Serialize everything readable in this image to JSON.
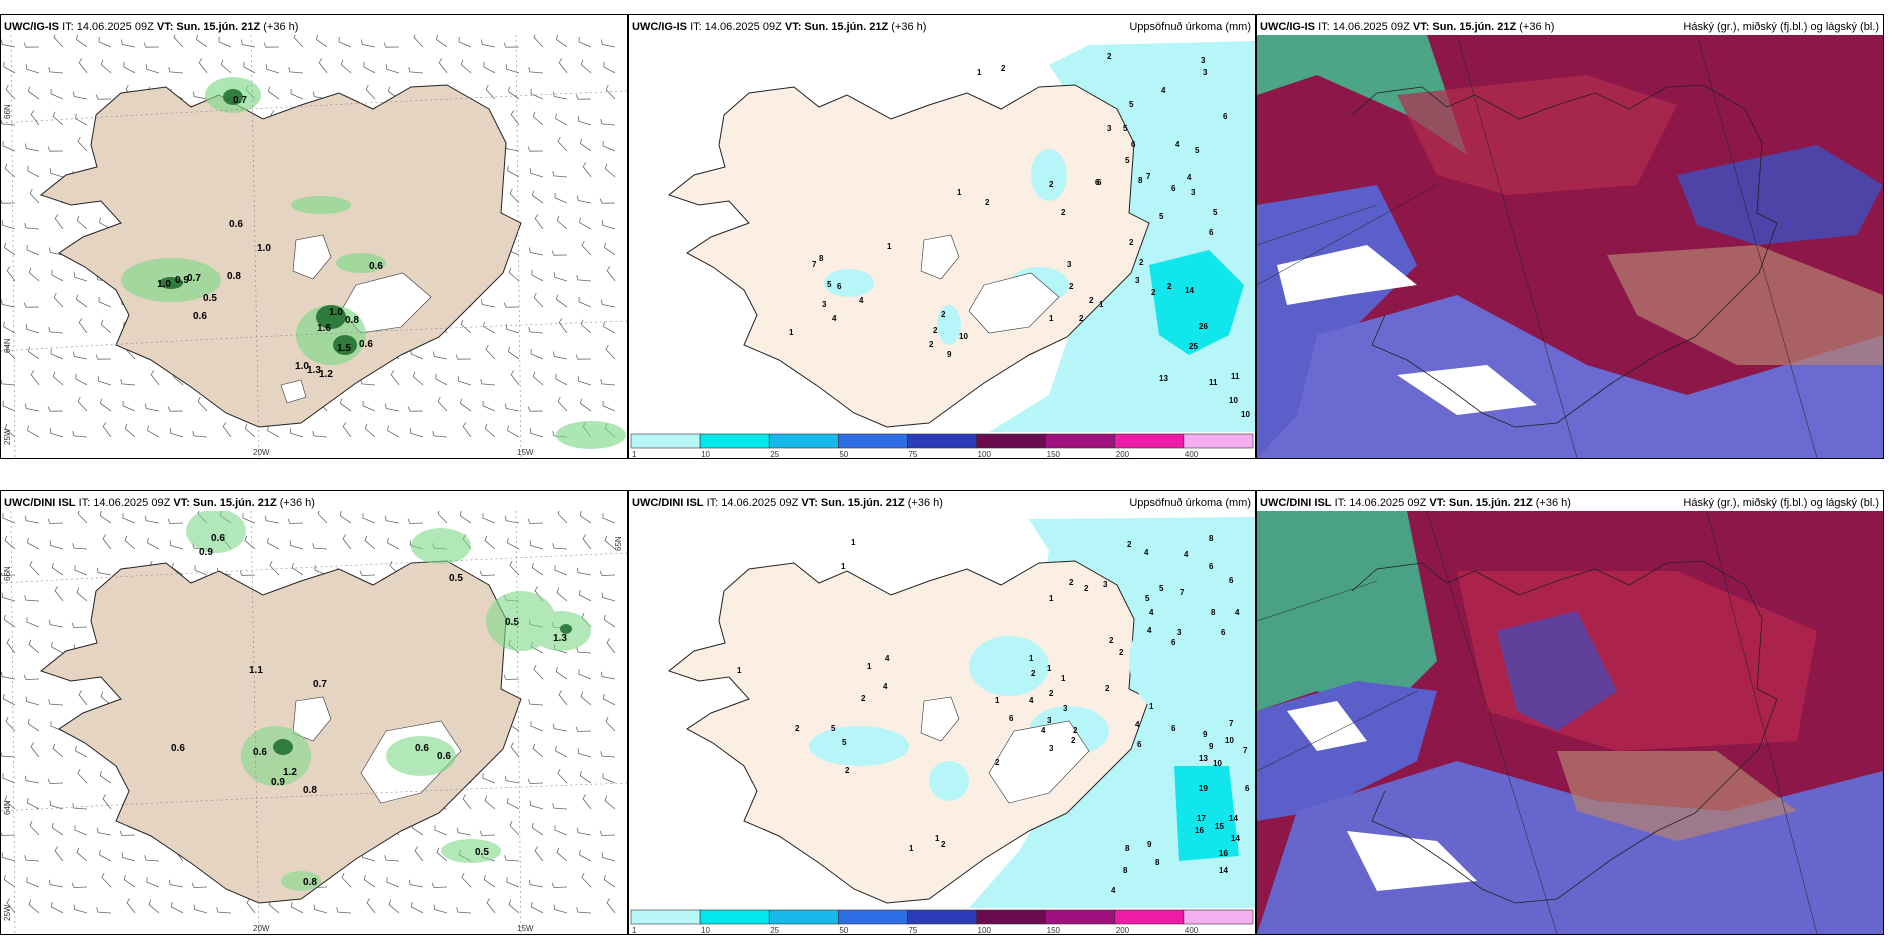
{
  "panels": {
    "p1": {
      "model": "UWC/IG-IS",
      "it": "IT: 14.06.2025 09Z",
      "vt_label": "VT:",
      "vt": "Sun. 15.jún. 21Z",
      "lead": "(+36 h)",
      "right": ""
    },
    "p2": {
      "model": "UWC/IG-IS",
      "it": "IT: 14.06.2025 09Z",
      "vt_label": "VT:",
      "vt": "Sun. 15.jún. 21Z",
      "lead": "(+36 h)",
      "right": "Uppsöfnuð úrkoma (mm)"
    },
    "p3": {
      "model": "UWC/IG-IS",
      "it": "IT: 14.06.2025 09Z",
      "vt_label": "VT:",
      "vt": "Sun. 15.jún. 21Z",
      "lead": "(+36 h)",
      "right": "Háský (gr.), miðský (fj.bl.) og lágský (bl.)"
    },
    "p4": {
      "model": "UWC/DINI ISL",
      "it": "IT: 14.06.2025 09Z",
      "vt_label": "VT:",
      "vt": "Sun. 15.jún. 21Z",
      "lead": "(+36 h)",
      "right": ""
    },
    "p5": {
      "model": "UWC/DINI ISL",
      "it": "IT: 14.06.2025 09Z",
      "vt_label": "VT:",
      "vt": "Sun. 15.jún. 21Z",
      "lead": "(+36 h)",
      "right": "Uppsöfnuð úrkoma (mm)"
    },
    "p6": {
      "model": "UWC/DINI ISL",
      "it": "IT: 14.06.2025 09Z",
      "vt_label": "VT:",
      "vt": "Sun. 15.jún. 21Z",
      "lead": "(+36 h)",
      "right": "Háský (gr.), miðský (fj.bl.) og lágský (bl.)"
    }
  },
  "axes": {
    "lat_66": "66N",
    "lat_64": "64N",
    "lat_65": "65N",
    "lon_20": "20W",
    "lon_15": "15W",
    "lon_25": "25W"
  },
  "colorbar": {
    "ticks": [
      "1",
      "10",
      "25",
      "50",
      "75",
      "100",
      "150",
      "200",
      "400"
    ],
    "colors": [
      "#b8f6f8",
      "#00e8ee",
      "#18b8ea",
      "#2f6de6",
      "#2b3cb8",
      "#6a0a4f",
      "#a0107f",
      "#ee1aa8",
      "#f5aef0"
    ]
  },
  "wind_labels_top": [
    "0.7",
    "0.6",
    "1.0",
    "1.0",
    "0.9",
    "0.7",
    "0.8",
    "0.5",
    "0.6",
    "0.6",
    "1.0",
    "0.8",
    "1.6",
    "0.6",
    "1.0",
    "1.3",
    "1.2",
    "1.5"
  ],
  "wind_labels_bottom": [
    "0.6",
    "0.9",
    "0.5",
    "0.5",
    "1.3",
    "1.1",
    "0.7",
    "0.6",
    "0.6",
    "0.6",
    "0.6",
    "1.2",
    "0.9",
    "0.8",
    "0.8",
    "0.5"
  ],
  "precip_top": [
    "1",
    "2",
    "2",
    "3",
    "3",
    "5",
    "4",
    "6",
    "3",
    "5",
    "6",
    "4",
    "5",
    "6",
    "5",
    "4",
    "1",
    "2",
    "2",
    "2",
    "6",
    "7",
    "6",
    "3",
    "5",
    "8",
    "5",
    "2",
    "6",
    "8",
    "2",
    "1",
    "7",
    "5",
    "6",
    "3",
    "4",
    "4",
    "1",
    "2",
    "2",
    "10",
    "9",
    "2",
    "2",
    "2",
    "1",
    "1",
    "2",
    "3",
    "14",
    "26",
    "25",
    "13",
    "11",
    "11",
    "10",
    "10",
    "2",
    "2",
    "3"
  ],
  "precip_bottom": [
    "1",
    "1",
    "2",
    "8",
    "4",
    "4",
    "6",
    "6",
    "2",
    "2",
    "3",
    "5",
    "7",
    "5",
    "4",
    "8",
    "6",
    "4",
    "3",
    "1",
    "2",
    "2",
    "4",
    "6",
    "1",
    "1",
    "1",
    "1",
    "2",
    "2",
    "4",
    "1",
    "3",
    "3",
    "4",
    "7",
    "6",
    "4",
    "2",
    "6",
    "6",
    "2",
    "2",
    "3",
    "2",
    "4",
    "1",
    "4",
    "2",
    "5",
    "5",
    "2",
    "9",
    "9",
    "10",
    "13",
    "10",
    "7",
    "6",
    "19",
    "17",
    "15",
    "16",
    "14",
    "14",
    "16",
    "14",
    "1",
    "2",
    "8",
    "8",
    "9",
    "8",
    "4",
    "2",
    "1",
    "1"
  ]
}
